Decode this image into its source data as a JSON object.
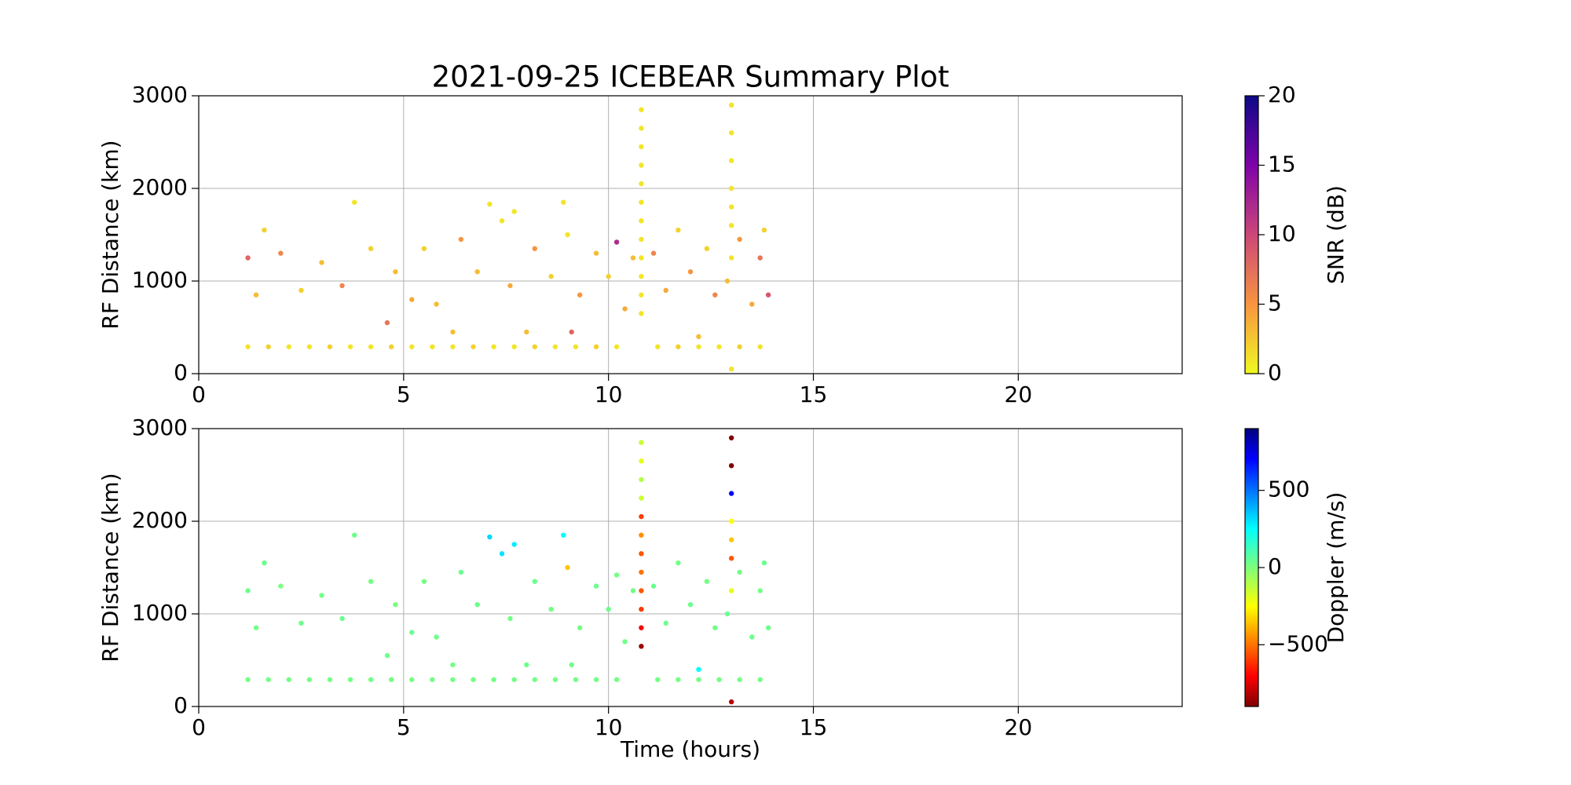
{
  "chart_data": [
    {
      "type": "scatter",
      "title": "2021-09-25 ICEBEAR Summary Plot",
      "ylabel": "RF Distance (km)",
      "colorbar_label": "SNR (dB)",
      "colormap": "plasma_r",
      "xlim": [
        0,
        24
      ],
      "xticks": [
        0,
        5,
        10,
        15,
        20
      ],
      "ylim": [
        0,
        3000
      ],
      "yticks": [
        0,
        1000,
        2000,
        3000
      ],
      "grid": true,
      "clim": [
        0,
        20
      ],
      "cticks": [
        0,
        5,
        10,
        15,
        20
      ],
      "x": [
        1.2,
        1.7,
        2.2,
        2.7,
        3.2,
        3.7,
        4.2,
        4.7,
        5.2,
        5.7,
        6.2,
        6.7,
        7.2,
        7.7,
        8.2,
        8.7,
        9.2,
        9.7,
        10.2,
        11.2,
        11.7,
        12.2,
        12.7,
        13.2,
        13.7,
        1.2,
        1.4,
        1.6,
        2.0,
        2.5,
        3.0,
        3.5,
        3.8,
        4.2,
        4.6,
        4.8,
        5.2,
        5.5,
        5.8,
        6.2,
        6.4,
        6.8,
        7.1,
        7.4,
        7.7,
        7.6,
        8.0,
        8.2,
        8.6,
        8.9,
        9.0,
        9.1,
        9.3,
        9.7,
        10.0,
        10.2,
        10.4,
        10.6,
        11.1,
        11.4,
        11.7,
        12.0,
        12.2,
        12.4,
        12.6,
        12.9,
        13.2,
        13.5,
        13.7,
        13.8,
        13.9,
        10.8,
        10.8,
        10.8,
        10.8,
        10.8,
        10.8,
        10.8,
        10.8,
        10.8,
        10.8,
        10.8,
        10.8,
        13.0,
        13.0,
        13.0,
        13.0,
        13.0,
        13.0,
        13.0,
        13.0
      ],
      "values": [
        290,
        290,
        290,
        290,
        290,
        290,
        290,
        290,
        290,
        290,
        290,
        290,
        290,
        290,
        290,
        290,
        290,
        290,
        290,
        290,
        290,
        290,
        290,
        290,
        290,
        1250,
        850,
        1550,
        1300,
        900,
        1200,
        950,
        1850,
        1350,
        550,
        1100,
        800,
        1350,
        750,
        450,
        1450,
        1100,
        1830,
        1650,
        1750,
        950,
        450,
        1350,
        1050,
        1850,
        1500,
        450,
        850,
        1300,
        1050,
        1420,
        700,
        1250,
        1300,
        900,
        1550,
        1100,
        400,
        1350,
        850,
        1000,
        1450,
        750,
        1250,
        1550,
        850,
        650,
        850,
        1050,
        1250,
        1450,
        1650,
        1850,
        2050,
        2250,
        2450,
        2650,
        2850,
        50,
        1250,
        1600,
        1800,
        2000,
        2300,
        2600,
        2900
      ],
      "color_values": [
        1,
        2,
        1,
        1,
        2,
        1,
        1,
        2,
        1,
        1,
        1,
        2,
        1,
        1,
        2,
        1,
        1,
        2,
        1,
        1,
        2,
        1,
        1,
        2,
        1,
        8,
        3,
        2,
        6,
        2,
        3,
        6,
        1,
        2,
        7,
        3,
        4,
        2,
        3,
        3,
        5,
        3,
        1,
        1,
        1,
        4,
        3,
        5,
        2,
        1,
        1,
        8,
        5,
        3,
        2,
        12,
        4,
        3,
        6,
        4,
        2,
        5,
        3,
        2,
        6,
        3,
        5,
        4,
        7,
        2,
        9,
        1,
        1,
        1,
        1,
        1,
        1,
        1,
        1,
        1,
        1,
        1,
        1,
        1,
        1,
        1,
        1,
        1,
        1,
        1,
        1
      ]
    },
    {
      "type": "scatter",
      "xlabel": "Time (hours)",
      "ylabel": "RF Distance (km)",
      "colorbar_label": "Doppler (m/s)",
      "colormap": "jet_r",
      "xlim": [
        0,
        24
      ],
      "xticks": [
        0,
        5,
        10,
        15,
        20
      ],
      "ylim": [
        0,
        3000
      ],
      "yticks": [
        0,
        1000,
        2000,
        3000
      ],
      "grid": true,
      "clim": [
        -900,
        900
      ],
      "cticks": [
        {
          "value": -500,
          "label": "−500"
        },
        0,
        500
      ],
      "x": [
        1.2,
        1.7,
        2.2,
        2.7,
        3.2,
        3.7,
        4.2,
        4.7,
        5.2,
        5.7,
        6.2,
        6.7,
        7.2,
        7.7,
        8.2,
        8.7,
        9.2,
        9.7,
        10.2,
        11.2,
        11.7,
        12.2,
        12.7,
        13.2,
        13.7,
        1.2,
        1.4,
        1.6,
        2.0,
        2.5,
        3.0,
        3.5,
        3.8,
        4.2,
        4.6,
        4.8,
        5.2,
        5.5,
        5.8,
        6.2,
        6.4,
        6.8,
        7.1,
        7.4,
        7.7,
        7.6,
        8.0,
        8.2,
        8.6,
        8.9,
        9.0,
        9.1,
        9.3,
        9.7,
        10.0,
        10.2,
        10.4,
        10.6,
        11.1,
        11.4,
        11.7,
        12.0,
        12.2,
        12.4,
        12.6,
        12.9,
        13.2,
        13.5,
        13.7,
        13.8,
        13.9,
        10.8,
        10.8,
        10.8,
        10.8,
        10.8,
        10.8,
        10.8,
        10.8,
        10.8,
        10.8,
        10.8,
        10.8,
        13.0,
        13.0,
        13.0,
        13.0,
        13.0,
        13.0,
        13.0,
        13.0
      ],
      "values": [
        290,
        290,
        290,
        290,
        290,
        290,
        290,
        290,
        290,
        290,
        290,
        290,
        290,
        290,
        290,
        290,
        290,
        290,
        290,
        290,
        290,
        290,
        290,
        290,
        290,
        1250,
        850,
        1550,
        1300,
        900,
        1200,
        950,
        1850,
        1350,
        550,
        1100,
        800,
        1350,
        750,
        450,
        1450,
        1100,
        1830,
        1650,
        1750,
        950,
        450,
        1350,
        1050,
        1850,
        1500,
        450,
        850,
        1300,
        1050,
        1420,
        700,
        1250,
        1300,
        900,
        1550,
        1100,
        400,
        1350,
        850,
        1000,
        1450,
        750,
        1250,
        1550,
        850,
        650,
        850,
        1050,
        1250,
        1450,
        1650,
        1850,
        2050,
        2250,
        2450,
        2650,
        2850,
        50,
        1250,
        1600,
        1800,
        2000,
        2300,
        2600,
        2900
      ],
      "color_values": [
        20,
        20,
        20,
        20,
        20,
        20,
        20,
        20,
        20,
        20,
        20,
        20,
        20,
        20,
        20,
        20,
        20,
        20,
        20,
        20,
        20,
        20,
        20,
        20,
        20,
        30,
        20,
        40,
        10,
        30,
        20,
        40,
        30,
        20,
        30,
        10,
        40,
        20,
        30,
        20,
        40,
        30,
        320,
        300,
        280,
        20,
        30,
        40,
        20,
        250,
        -350,
        30,
        20,
        40,
        30,
        20,
        30,
        20,
        40,
        30,
        20,
        30,
        250,
        20,
        30,
        40,
        20,
        30,
        20,
        40,
        30,
        -850,
        -700,
        -600,
        -550,
        -500,
        -550,
        -450,
        -600,
        -150,
        -100,
        -200,
        -150,
        -800,
        -200,
        -550,
        -350,
        -250,
        700,
        -900,
        -900
      ]
    }
  ]
}
